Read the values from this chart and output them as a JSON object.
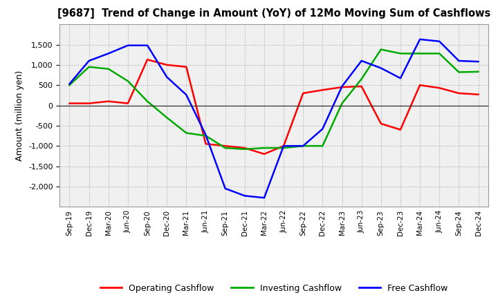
{
  "title": "[9687]  Trend of Change in Amount (YoY) of 12Mo Moving Sum of Cashflows",
  "ylabel": "Amount (million yen)",
  "x_labels": [
    "Sep-19",
    "Dec-19",
    "Mar-20",
    "Jun-20",
    "Sep-20",
    "Dec-20",
    "Mar-21",
    "Jun-21",
    "Sep-21",
    "Dec-21",
    "Mar-22",
    "Jun-22",
    "Sep-22",
    "Dec-22",
    "Mar-23",
    "Jun-23",
    "Sep-23",
    "Dec-23",
    "Mar-24",
    "Jun-24",
    "Sep-24",
    "Dec-24"
  ],
  "operating": [
    50,
    50,
    100,
    50,
    1130,
    1000,
    950,
    -950,
    -1000,
    -1050,
    -1200,
    -1000,
    300,
    380,
    450,
    470,
    -450,
    -600,
    500,
    430,
    300,
    270
  ],
  "investing": [
    500,
    950,
    900,
    600,
    100,
    -300,
    -680,
    -750,
    -1050,
    -1080,
    -1050,
    -1050,
    -1000,
    -1000,
    50,
    650,
    1380,
    1280,
    1280,
    1280,
    820,
    830
  ],
  "free": [
    530,
    1100,
    1280,
    1480,
    1480,
    700,
    260,
    -730,
    -2050,
    -2230,
    -2280,
    -1000,
    -1000,
    -580,
    470,
    1100,
    920,
    670,
    1630,
    1580,
    1100,
    1080
  ],
  "ylim": [
    -2500,
    2000
  ],
  "yticks": [
    -2000,
    -1500,
    -1000,
    -500,
    0,
    500,
    1000,
    1500
  ],
  "operating_color": "#ff0000",
  "investing_color": "#00aa00",
  "free_color": "#0000ff",
  "bg_color": "#ffffff",
  "plot_bg_color": "#f0f0f0",
  "grid_color": "#aaaaaa",
  "legend_labels": [
    "Operating Cashflow",
    "Investing Cashflow",
    "Free Cashflow"
  ]
}
